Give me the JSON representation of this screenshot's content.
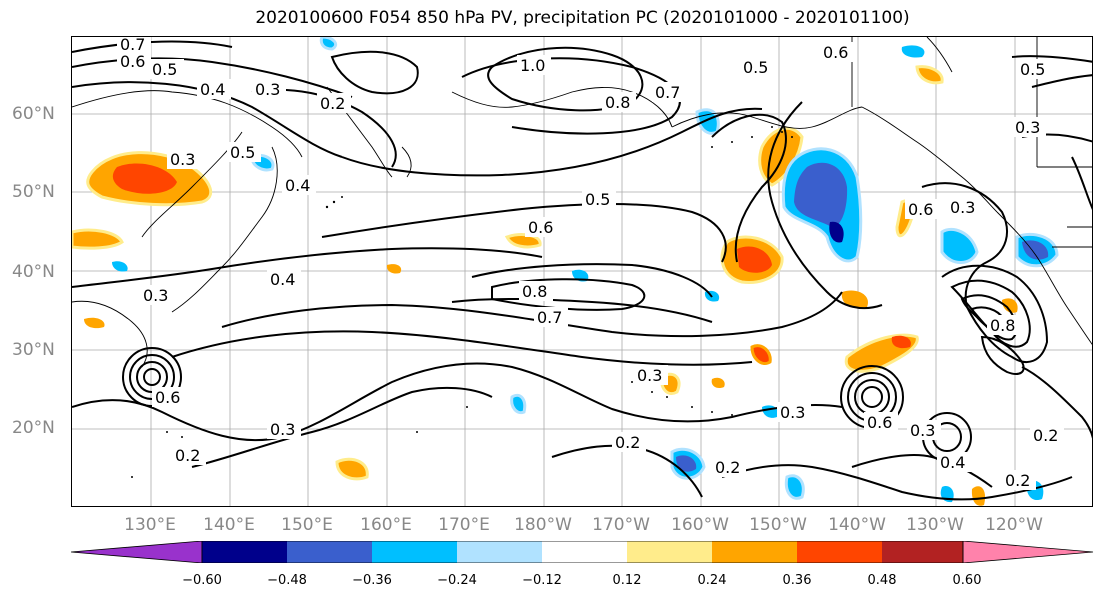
{
  "title": "2020100600 F054 850 hPa PV, precipitation PC (2020101000 - 2020101100)",
  "map": {
    "lat_labels": [
      "60°N",
      "50°N",
      "40°N",
      "30°N",
      "20°N"
    ],
    "lon_labels": [
      "130°E",
      "140°E",
      "150°E",
      "160°E",
      "170°E",
      "180°W",
      "170°W",
      "160°W",
      "150°W",
      "140°W",
      "130°W",
      "120°W"
    ],
    "contour_labels": [
      "0.7",
      "0.6",
      "0.5",
      "0.3",
      "0.2",
      "0.4",
      "1.0",
      "0.8",
      "0.7",
      "0.5",
      "0.6",
      "0.5",
      "0.5",
      "0.3",
      "0.6",
      "0.5",
      "0.6",
      "0.3",
      "0.4",
      "0.3",
      "0.4",
      "0.8",
      "0.7",
      "0.3",
      "0.3",
      "0.2",
      "0.3",
      "0.3",
      "0.2",
      "0.6",
      "0.6",
      "0.3",
      "0.4",
      "0.2",
      "0.2",
      "0.8",
      "0.2"
    ]
  },
  "colorbar": {
    "tick_labels": [
      "−0.60",
      "−0.48",
      "−0.36",
      "−0.24",
      "−0.12",
      "0.12",
      "0.24",
      "0.36",
      "0.48",
      "0.60"
    ],
    "colors": [
      "#9932CC",
      "#00008B",
      "#3A5FCD",
      "#00BFFF",
      "#B0E2FF",
      "#FFFFFF",
      "#FFEC8B",
      "#FFA500",
      "#FF4500",
      "#B22222",
      "#FF82AB"
    ]
  }
}
